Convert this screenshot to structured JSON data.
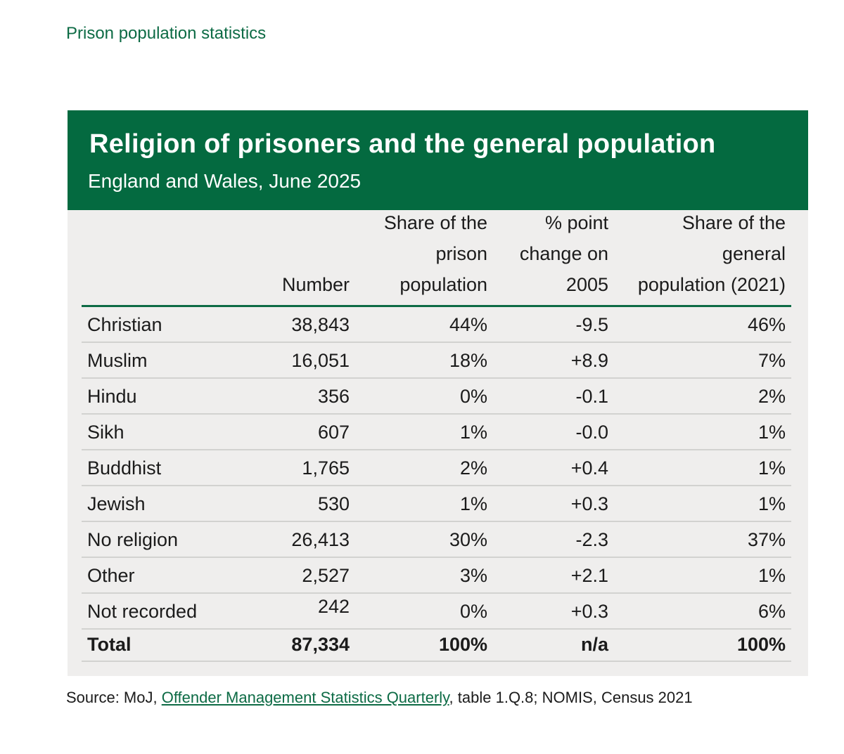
{
  "page_header": "Prison population statistics",
  "title": "Religion of prisoners and the general population",
  "subtitle": "England and Wales, June 2025",
  "columns": {
    "number": [
      "Number"
    ],
    "share_prison": [
      "Share of the",
      "prison",
      "population"
    ],
    "change": [
      "% point",
      "change on",
      "2005"
    ],
    "share_general": [
      "Share of the",
      "general",
      "population (2021)"
    ]
  },
  "rows": [
    {
      "religion": "Christian",
      "number": "38,843",
      "share": "44%",
      "change": "-9.5",
      "general": "46%"
    },
    {
      "religion": "Muslim",
      "number": "16,051",
      "share": "18%",
      "change": "+8.9",
      "general": "7%"
    },
    {
      "religion": "Hindu",
      "number": "356",
      "share": "0%",
      "change": "-0.1",
      "general": "2%"
    },
    {
      "religion": "Sikh",
      "number": "607",
      "share": "1%",
      "change": "-0.0",
      "general": "1%"
    },
    {
      "religion": "Buddhist",
      "number": "1,765",
      "share": "2%",
      "change": "+0.4",
      "general": "1%"
    },
    {
      "religion": "Jewish",
      "number": "530",
      "share": "1%",
      "change": "+0.3",
      "general": "1%"
    },
    {
      "religion": "No religion",
      "number": "26,413",
      "share": "30%",
      "change": "-2.3",
      "general": "37%"
    },
    {
      "religion": "Other",
      "number": "2,527",
      "share": "3%",
      "change": "+2.1",
      "general": "1%"
    },
    {
      "religion": "Not recorded",
      "number": "242",
      "share": "0%",
      "change": "+0.3",
      "general": "6%"
    }
  ],
  "total": {
    "religion": "Total",
    "number": "87,334",
    "share": "100%",
    "change": "n/a",
    "general": "100%"
  },
  "source": {
    "prefix": "Source: MoJ, ",
    "link_text": "Offender Management Statistics Quarterly",
    "suffix": ", table 1.Q.8; NOMIS, Census 2021"
  },
  "colors": {
    "brand_green": "#046a40",
    "panel_bg": "#efeeed"
  }
}
